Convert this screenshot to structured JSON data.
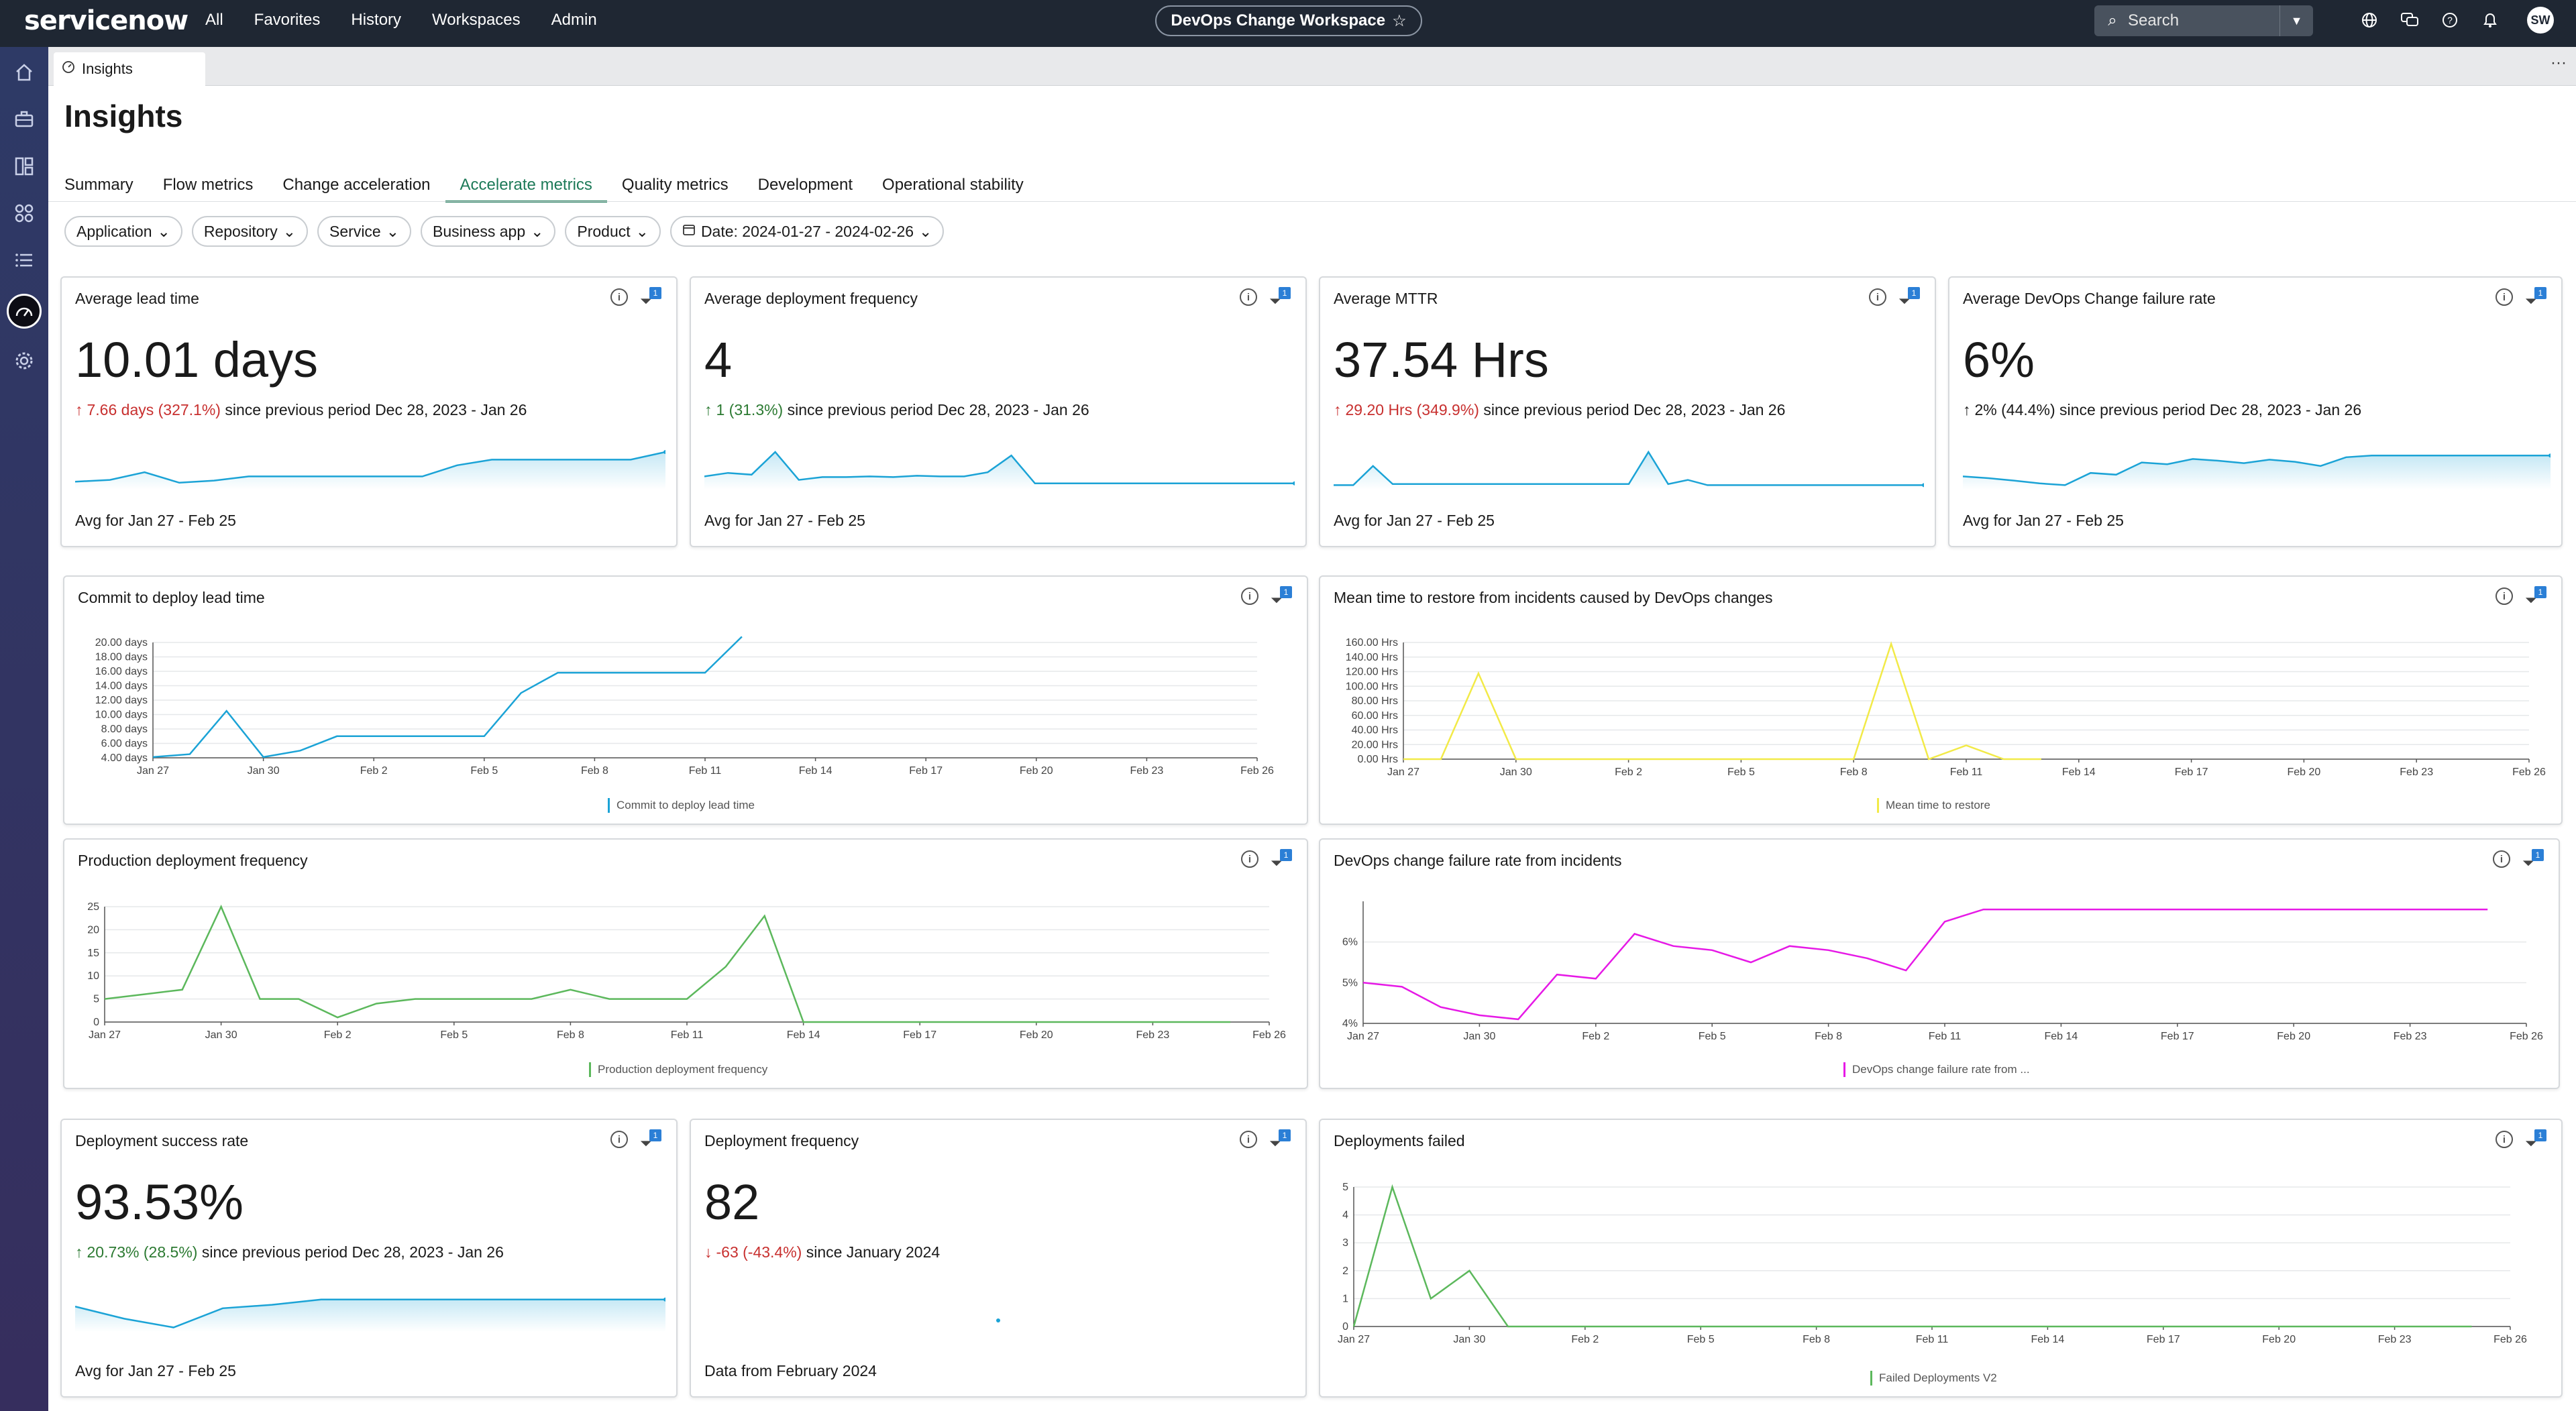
{
  "topbar": {
    "logo": "servicenow",
    "nav": [
      "All",
      "Favorites",
      "History",
      "Workspaces",
      "Admin"
    ],
    "workspace": "DevOps Change Workspace",
    "search_placeholder": "Search",
    "avatar": "SW"
  },
  "app_tab": {
    "label": "Insights"
  },
  "page": {
    "title": "Insights"
  },
  "subtabs": [
    "Summary",
    "Flow metrics",
    "Change acceleration",
    "Accelerate metrics",
    "Quality metrics",
    "Development",
    "Operational stability"
  ],
  "active_subtab": 3,
  "filters": [
    "Application",
    "Repository",
    "Service",
    "Business app",
    "Product"
  ],
  "date_filter": "Date: 2024-01-27 - 2024-02-26",
  "kpis": [
    {
      "title": "Average lead time",
      "value": "10.01 days",
      "delta": "7.66 days (327.1%)",
      "delta_dir": "up-bad",
      "arrow": "↑",
      "since": " since previous period Dec 28, 2023 - Jan 26",
      "footer": "Avg for Jan 27 - Feb 25",
      "filter_count": "1",
      "spark": [
        0.15,
        0.2,
        0.42,
        0.12,
        0.18,
        0.3,
        0.3,
        0.3,
        0.3,
        0.3,
        0.3,
        0.62,
        0.78,
        0.78,
        0.78,
        0.78,
        0.78,
        1.0
      ]
    },
    {
      "title": "Average deployment frequency",
      "value": "4",
      "delta": "1 (31.3%)",
      "delta_dir": "up-good",
      "arrow": "↑",
      "since": " since previous period Dec 28, 2023 - Jan 26",
      "footer": "Avg for Jan 27 - Feb 25",
      "filter_count": "1",
      "spark": [
        0.3,
        0.4,
        0.35,
        1.0,
        0.2,
        0.28,
        0.28,
        0.3,
        0.28,
        0.32,
        0.3,
        0.3,
        0.42,
        0.9,
        0.1,
        0.1,
        0.1,
        0.1,
        0.1,
        0.1,
        0.1,
        0.1,
        0.1,
        0.1,
        0.1,
        0.1
      ]
    },
    {
      "title": "Average MTTR",
      "value": "37.54 Hrs",
      "delta": "29.20 Hrs (349.9%)",
      "delta_dir": "up-bad",
      "arrow": "↑",
      "since": " since previous period Dec 28, 2023 - Jan 26",
      "footer": "Avg for Jan 27 - Feb 25",
      "filter_count": "1",
      "spark": [
        0.05,
        0.05,
        0.6,
        0.08,
        0.08,
        0.08,
        0.08,
        0.08,
        0.08,
        0.08,
        0.08,
        0.08,
        0.08,
        0.08,
        0.08,
        0.08,
        1.0,
        0.08,
        0.2,
        0.05,
        0.05,
        0.05,
        0.05,
        0.05,
        0.05,
        0.05,
        0.05,
        0.05,
        0.05,
        0.05,
        0.05
      ]
    },
    {
      "title": "Average DevOps Change failure rate",
      "value": "6%",
      "delta": "2% (44.4%)",
      "delta_dir": "neutral",
      "arrow": "↑",
      "since": " since previous period Dec 28, 2023 - Jan 26",
      "footer": "Avg for Jan 27 - Feb 25",
      "filter_count": "1",
      "spark": [
        0.3,
        0.25,
        0.18,
        0.1,
        0.05,
        0.4,
        0.35,
        0.7,
        0.65,
        0.8,
        0.75,
        0.68,
        0.78,
        0.72,
        0.6,
        0.85,
        0.9,
        0.9,
        0.9,
        0.9,
        0.9,
        0.9,
        0.9,
        0.9
      ]
    }
  ],
  "kpis_bottom": [
    {
      "title": "Deployment success rate",
      "value": "93.53%",
      "delta": "20.73% (28.5%)",
      "delta_dir": "up-good",
      "arrow": "↑",
      "since": " since previous period Dec 28, 2023 - Jan 26",
      "footer": "Avg for Jan 27 - Feb 25",
      "filter_count": "1",
      "spark": [
        0.65,
        0.3,
        0.05,
        0.6,
        0.7,
        0.85,
        0.85,
        0.85,
        0.85,
        0.85,
        0.85,
        0.85,
        0.85
      ]
    },
    {
      "title": "Deployment frequency",
      "value": "82",
      "delta": "-63 (-43.4%)",
      "delta_dir": "down-bad",
      "arrow": "↓",
      "since": " since January 2024",
      "footer": "Data from February 2024",
      "filter_count": "1"
    }
  ],
  "charts": [
    {
      "id": "commit-to-deploy",
      "title": "Commit to deploy lead time",
      "filter_count": "1",
      "chart_data": {
        "type": "line",
        "x": [
          "Jan 27",
          "Jan 28",
          "Jan 29",
          "Jan 30",
          "Jan 31",
          "Feb 1",
          "Feb 2",
          "Feb 3",
          "Feb 4",
          "Feb 5",
          "Feb 6",
          "Feb 7",
          "Feb 8",
          "Feb 9",
          "Feb 10",
          "Feb 11",
          "Feb 12"
        ],
        "xticks": [
          "Jan 27",
          "Jan 30",
          "Feb 2",
          "Feb 5",
          "Feb 8",
          "Feb 11",
          "Feb 14",
          "Feb 17",
          "Feb 20",
          "Feb 23",
          "Feb 26"
        ],
        "series": [
          {
            "name": "Commit to deploy lead time",
            "color": "#1ba3d6",
            "values": [
              4.1,
              4.5,
              10.5,
              4.1,
              5.0,
              7.0,
              7.0,
              7.0,
              7.0,
              7.0,
              13.0,
              15.8,
              15.8,
              15.8,
              15.8,
              15.8,
              20.8
            ]
          }
        ],
        "yticks": [
          "4.00 days",
          "6.00 days",
          "8.00 days",
          "10.00 days",
          "12.00 days",
          "14.00 days",
          "16.00 days",
          "18.00 days",
          "20.00 days"
        ],
        "ylim": [
          4,
          20
        ]
      }
    },
    {
      "id": "mttr-incidents",
      "title": "Mean time to restore from incidents caused by DevOps changes",
      "filter_count": "1",
      "chart_data": {
        "type": "line",
        "x": [
          "Jan 27",
          "Jan 28",
          "Jan 29",
          "Jan 30",
          "Jan 31",
          "Feb 1",
          "Feb 2",
          "Feb 3",
          "Feb 4",
          "Feb 5",
          "Feb 6",
          "Feb 7",
          "Feb 8",
          "Feb 9",
          "Feb 10",
          "Feb 11",
          "Feb 12",
          "Feb 13"
        ],
        "xticks": [
          "Jan 27",
          "Jan 30",
          "Feb 2",
          "Feb 5",
          "Feb 8",
          "Feb 11",
          "Feb 14",
          "Feb 17",
          "Feb 20",
          "Feb 23",
          "Feb 26"
        ],
        "series": [
          {
            "name": "Mean time to restore",
            "color": "#f2ea48",
            "values": [
              0,
              0,
              125,
              0,
              0,
              0,
              0,
              0,
              0,
              0,
              0,
              0,
              0,
              168,
              0,
              20,
              0,
              0
            ]
          }
        ],
        "yticks": [
          "0.00 Hrs",
          "20.00 Hrs",
          "40.00 Hrs",
          "60.00 Hrs",
          "80.00 Hrs",
          "100.00 Hrs",
          "120.00 Hrs",
          "140.00 Hrs",
          "160.00 Hrs"
        ],
        "ylim": [
          0,
          170
        ]
      }
    },
    {
      "id": "prod-deploy-freq",
      "title": "Production deployment frequency",
      "filter_count": "1",
      "chart_data": {
        "type": "line",
        "x": [
          "Jan 27",
          "Jan 28",
          "Jan 29",
          "Jan 30",
          "Jan 31",
          "Feb 1",
          "Feb 2",
          "Feb 3",
          "Feb 4",
          "Feb 5",
          "Feb 6",
          "Feb 7",
          "Feb 8",
          "Feb 9",
          "Feb 10",
          "Feb 11",
          "Feb 12",
          "Feb 13",
          "Feb 14",
          "Feb 15",
          "Feb 16",
          "Feb 17",
          "Feb 18",
          "Feb 19",
          "Feb 20",
          "Feb 21",
          "Feb 22",
          "Feb 23",
          "Feb 24",
          "Feb 25"
        ],
        "xticks": [
          "Jan 27",
          "Jan 30",
          "Feb 2",
          "Feb 5",
          "Feb 8",
          "Feb 11",
          "Feb 14",
          "Feb 17",
          "Feb 20",
          "Feb 23",
          "Feb 26"
        ],
        "series": [
          {
            "name": "Production deployment frequency",
            "color": "#5cb85c",
            "values": [
              5,
              6,
              7,
              25,
              5,
              5,
              1,
              4,
              5,
              5,
              5,
              5,
              7,
              5,
              5,
              5,
              12,
              23,
              0,
              0,
              0,
              0,
              0,
              0,
              0,
              0,
              0,
              0,
              0,
              0
            ]
          }
        ],
        "yticks": [
          "0",
          "5",
          "10",
          "15",
          "20",
          "25"
        ],
        "ylim": [
          0,
          25
        ]
      }
    },
    {
      "id": "failure-rate",
      "title": "DevOps change failure rate from incidents",
      "filter_count": "1",
      "chart_data": {
        "type": "line",
        "x": [
          "Jan 27",
          "Jan 28",
          "Jan 29",
          "Jan 30",
          "Jan 31",
          "Feb 1",
          "Feb 2",
          "Feb 3",
          "Feb 4",
          "Feb 5",
          "Feb 6",
          "Feb 7",
          "Feb 8",
          "Feb 9",
          "Feb 10",
          "Feb 11",
          "Feb 12",
          "Feb 13",
          "Feb 14",
          "Feb 15",
          "Feb 16",
          "Feb 17",
          "Feb 18",
          "Feb 19",
          "Feb 20",
          "Feb 21",
          "Feb 22",
          "Feb 23",
          "Feb 24",
          "Feb 25"
        ],
        "xticks": [
          "Jan 27",
          "Jan 30",
          "Feb 2",
          "Feb 5",
          "Feb 8",
          "Feb 11",
          "Feb 14",
          "Feb 17",
          "Feb 20",
          "Feb 23",
          "Feb 26"
        ],
        "series": [
          {
            "name": "DevOps change failure rate from ...",
            "color": "#e619e6",
            "values": [
              5.0,
              4.9,
              4.4,
              4.2,
              4.1,
              5.2,
              5.1,
              6.2,
              5.9,
              5.8,
              5.5,
              5.9,
              5.8,
              5.6,
              5.3,
              6.5,
              6.8,
              6.8,
              6.8,
              6.8,
              6.8,
              6.8,
              6.8,
              6.8,
              6.8,
              6.8,
              6.8,
              6.8,
              6.8,
              6.8
            ]
          }
        ],
        "yticks": [
          "4%",
          "5%",
          "6%"
        ],
        "ylim": [
          4,
          7
        ]
      }
    },
    {
      "id": "deployments-failed",
      "title": "Deployments failed",
      "filter_count": "1",
      "chart_data": {
        "type": "line",
        "x": [
          "Jan 27",
          "Jan 28",
          "Jan 29",
          "Jan 30",
          "Jan 31",
          "Feb 1",
          "Feb 2",
          "Feb 3",
          "Feb 4",
          "Feb 5",
          "Feb 6",
          "Feb 7",
          "Feb 8",
          "Feb 9",
          "Feb 10",
          "Feb 11",
          "Feb 12",
          "Feb 13",
          "Feb 14",
          "Feb 15",
          "Feb 16",
          "Feb 17",
          "Feb 18",
          "Feb 19",
          "Feb 20",
          "Feb 21",
          "Feb 22",
          "Feb 23",
          "Feb 24",
          "Feb 25"
        ],
        "xticks": [
          "Jan 27",
          "Jan 30",
          "Feb 2",
          "Feb 5",
          "Feb 8",
          "Feb 11",
          "Feb 14",
          "Feb 17",
          "Feb 20",
          "Feb 23",
          "Feb 26"
        ],
        "series": [
          {
            "name": "Failed Deployments V2",
            "color": "#5cb85c",
            "values": [
              0,
              5,
              1,
              2,
              0,
              0,
              0,
              0,
              0,
              0,
              0,
              0,
              0,
              0,
              0,
              0,
              0,
              0,
              0,
              0,
              0,
              0,
              0,
              0,
              0,
              0,
              0,
              0,
              0,
              0
            ]
          }
        ],
        "yticks": [
          "0",
          "1",
          "2",
          "3",
          "4",
          "5"
        ],
        "ylim": [
          0,
          5
        ]
      }
    }
  ]
}
